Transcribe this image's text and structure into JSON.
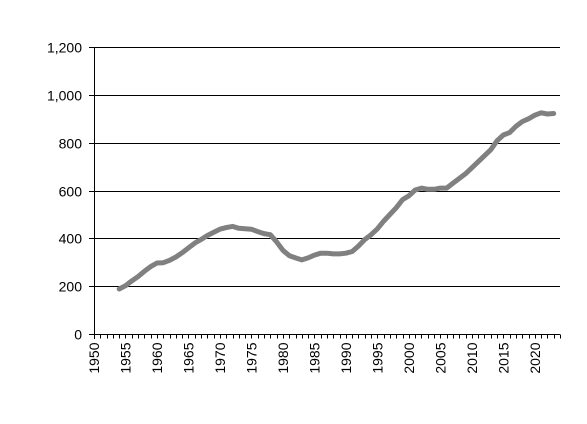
{
  "chart_data": {
    "type": "line",
    "title": "",
    "xlabel": "",
    "ylabel": "",
    "xlim": [
      1950,
      2024
    ],
    "ylim": [
      0,
      1200
    ],
    "y_ticks": [
      0,
      200,
      400,
      600,
      800,
      1000,
      1200
    ],
    "y_tick_labels": [
      "0",
      "200",
      "400",
      "600",
      "800",
      "1,000",
      "1,200"
    ],
    "x_ticks": [
      1950,
      1955,
      1960,
      1965,
      1970,
      1975,
      1980,
      1985,
      1990,
      1995,
      2000,
      2005,
      2010,
      2015,
      2020
    ],
    "x_tick_labels": [
      "1950",
      "1955",
      "1960",
      "1965",
      "1970",
      "1975",
      "1980",
      "1985",
      "1990",
      "1995",
      "2000",
      "2005",
      "2010",
      "2015",
      "2020"
    ],
    "grid": "horizontal",
    "legend": "none",
    "colors": {
      "series": "#808080",
      "grid": "#000000",
      "text": "#000000"
    },
    "series": [
      {
        "x": [
          1954,
          1955,
          1956,
          1957,
          1958,
          1959,
          1960,
          1961,
          1962,
          1963,
          1964,
          1965,
          1966,
          1967,
          1968,
          1969,
          1970,
          1971,
          1972,
          1973,
          1974,
          1975,
          1976,
          1977,
          1978,
          1979,
          1980,
          1981,
          1982,
          1983,
          1984,
          1985,
          1986,
          1987,
          1988,
          1989,
          1990,
          1991,
          1992,
          1993,
          1994,
          1995,
          1996,
          1997,
          1998,
          1999,
          2000,
          2001,
          2002,
          2003,
          2004,
          2005,
          2006,
          2007,
          2008,
          2009,
          2010,
          2011,
          2012,
          2013,
          2014,
          2015,
          2016,
          2017,
          2018,
          2019,
          2020,
          2021,
          2022,
          2023
        ],
        "values": [
          188,
          202,
          222,
          240,
          262,
          282,
          297,
          298,
          308,
          322,
          340,
          360,
          380,
          395,
          412,
          425,
          438,
          445,
          450,
          442,
          440,
          438,
          428,
          420,
          415,
          385,
          350,
          328,
          318,
          310,
          318,
          330,
          338,
          338,
          335,
          335,
          338,
          345,
          368,
          395,
          415,
          440,
          472,
          500,
          528,
          562,
          578,
          602,
          610,
          605,
          605,
          610,
          610,
          630,
          650,
          670,
          695,
          720,
          745,
          770,
          808,
          832,
          842,
          868,
          888,
          900,
          915,
          925,
          920,
          922
        ]
      }
    ]
  }
}
